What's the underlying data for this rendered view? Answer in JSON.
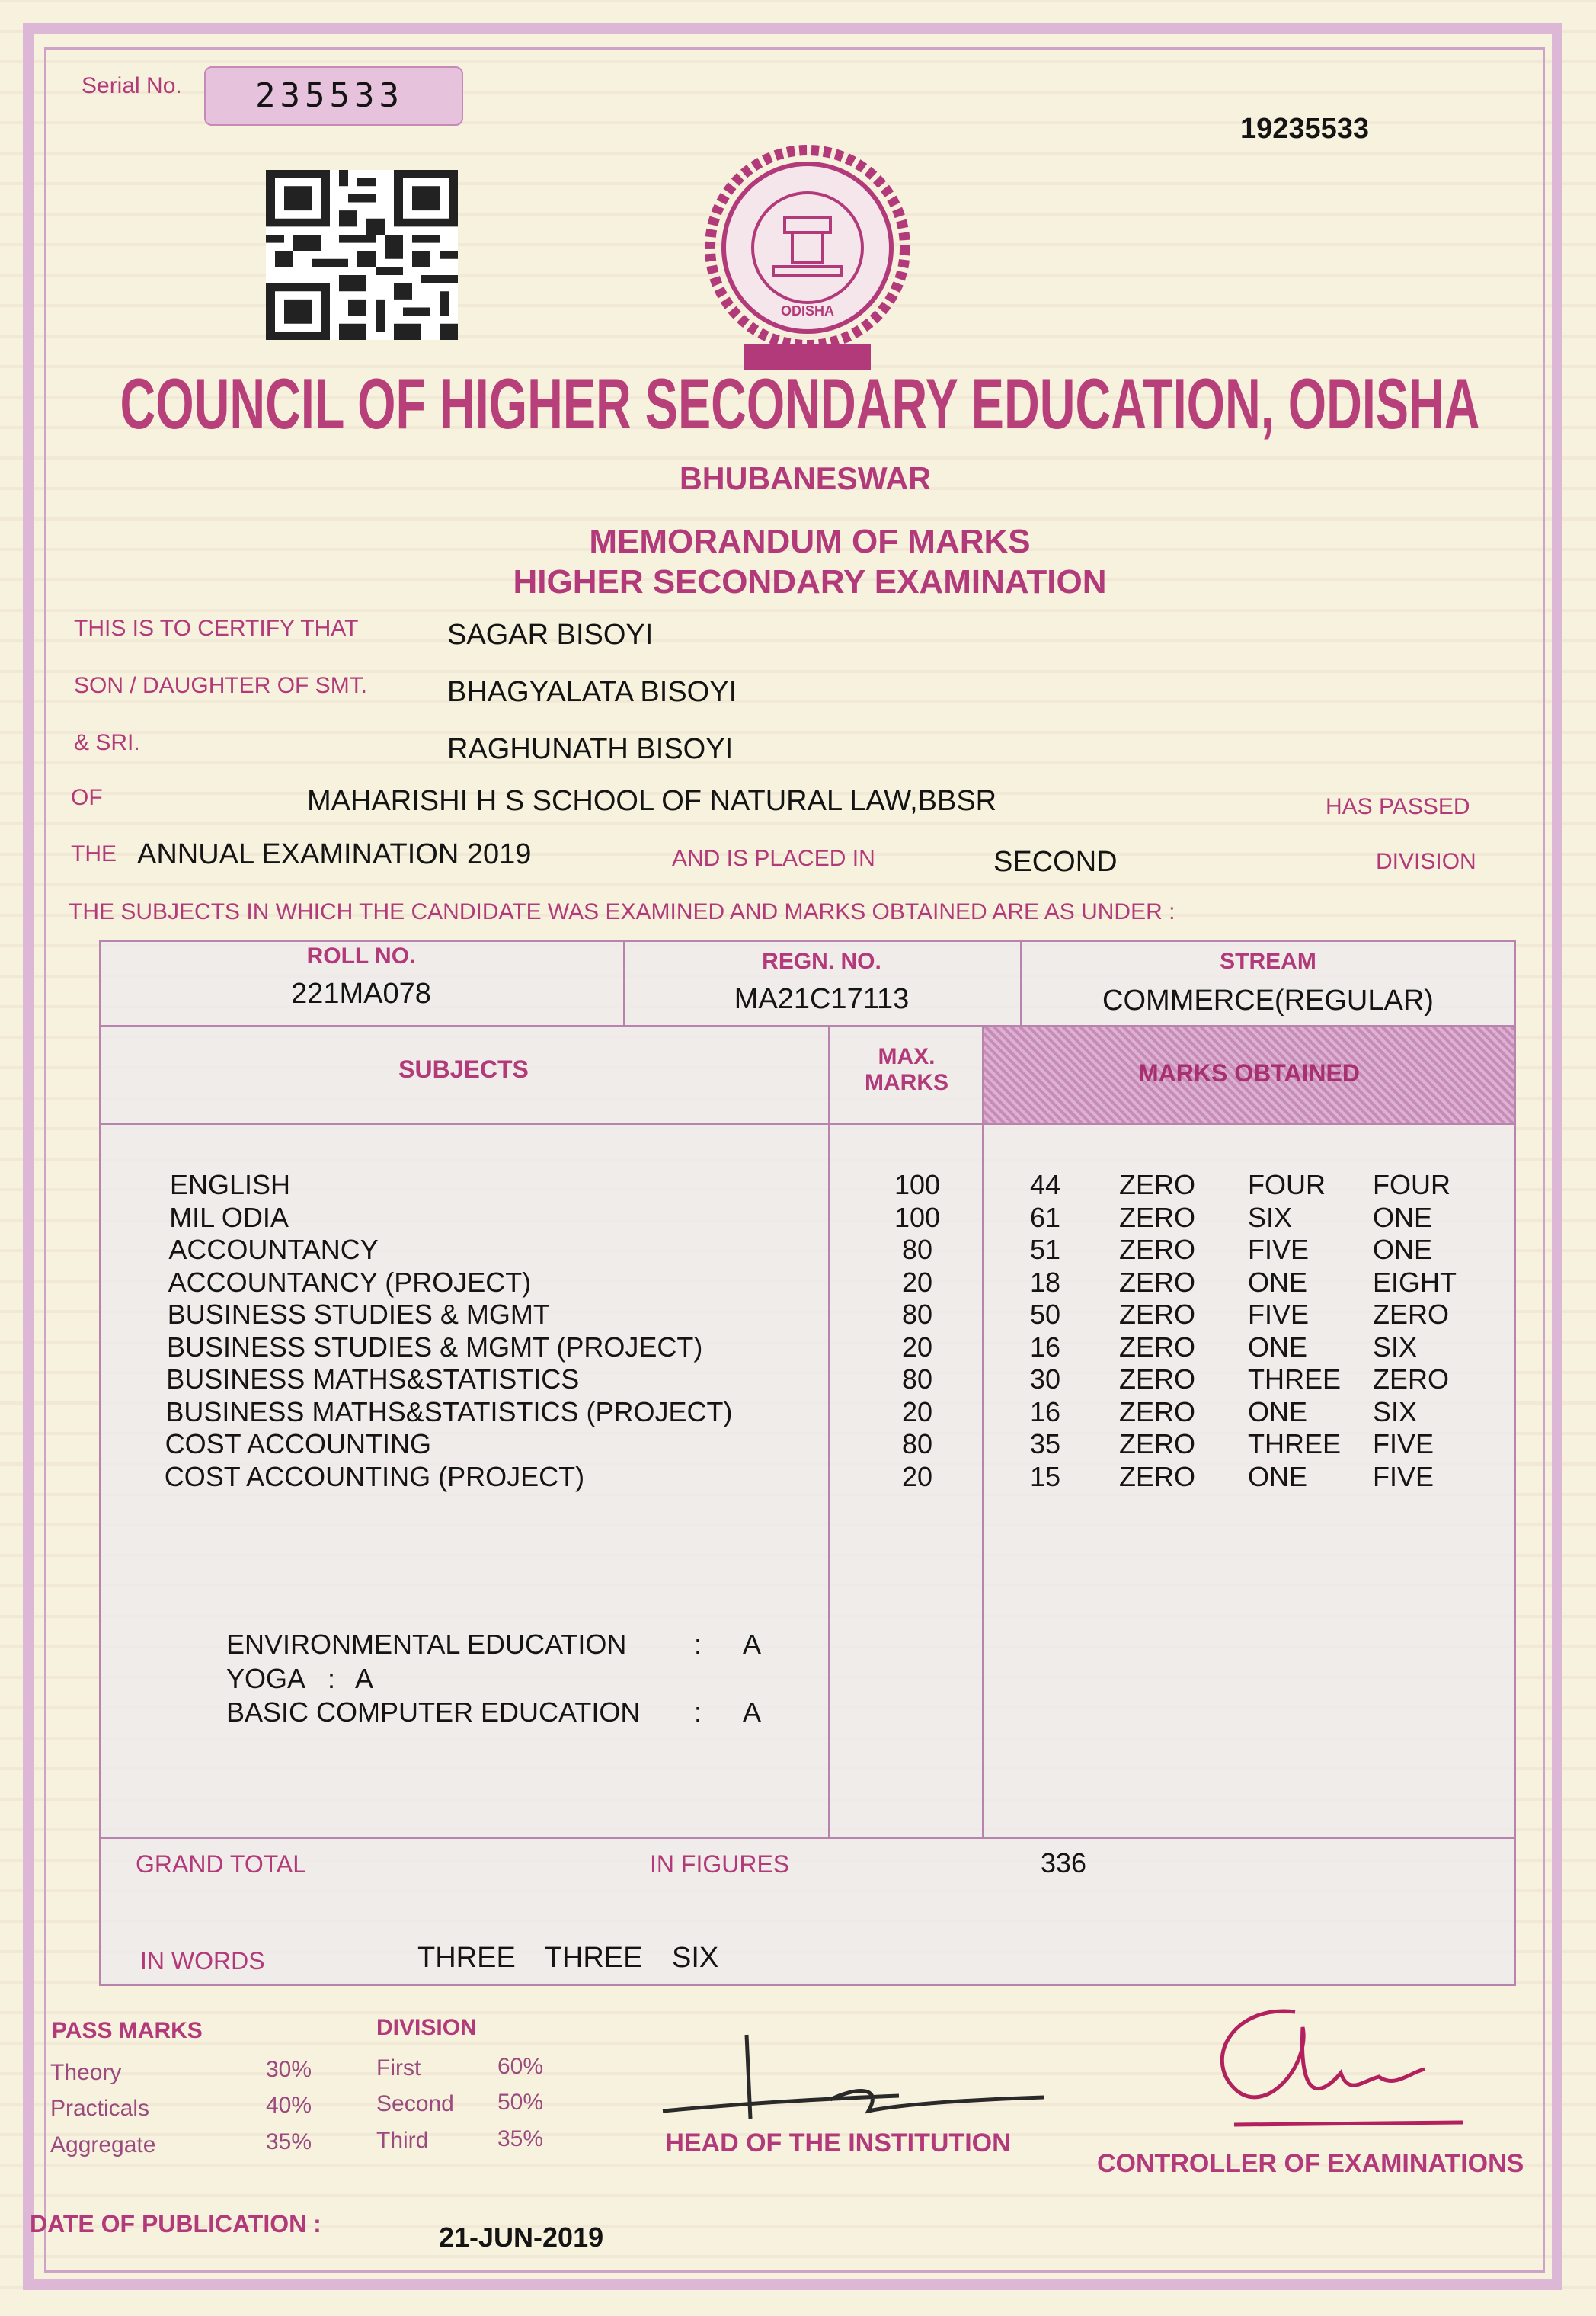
{
  "serial": {
    "label": "Serial No.",
    "value": "235533"
  },
  "certificate_no": "19235533",
  "header": {
    "logo_text": "ODISHA",
    "title": "COUNCIL OF HIGHER SECONDARY EDUCATION, ODISHA",
    "city": "BHUBANESWAR",
    "document_title": "MEMORANDUM OF MARKS",
    "exam_title": "HIGHER SECONDARY EXAMINATION"
  },
  "certify": [
    {
      "label": "THIS IS TO CERTIFY THAT",
      "value": "SAGAR BISOYI"
    },
    {
      "label": "SON / DAUGHTER OF SMT.",
      "value": "BHAGYALATA BISOYI"
    },
    {
      "label": "& SRI.",
      "value": "RAGHUNATH BISOYI"
    }
  ],
  "school_line": {
    "label": "OF",
    "value": "MAHARISHI H S SCHOOL OF NATURAL LAW,BBSR",
    "suffix": "HAS PASSED"
  },
  "exam_line": {
    "label": "THE",
    "exam": "ANNUAL EXAMINATION 2019",
    "placed_label": "AND IS PLACED IN",
    "division": "SECOND",
    "suffix": "DIVISION"
  },
  "subjects_intro": "THE SUBJECTS IN WHICH THE CANDIDATE WAS EXAMINED AND MARKS OBTAINED ARE AS UNDER :",
  "table": {
    "ids": [
      {
        "label": "ROLL NO.",
        "value": "221MA078"
      },
      {
        "label": "REGN. NO.",
        "value": "MA21C17113"
      },
      {
        "label": "STREAM",
        "value": "COMMERCE(REGULAR)"
      }
    ],
    "columns": [
      "SUBJECTS",
      "MAX. MARKS",
      "MARKS OBTAINED"
    ],
    "rows": [
      {
        "subject": "ENGLISH",
        "max_marks": 100,
        "marks": 44,
        "in_words": [
          "ZERO",
          "FOUR",
          "FOUR"
        ]
      },
      {
        "subject": "MIL ODIA",
        "max_marks": 100,
        "marks": 61,
        "in_words": [
          "ZERO",
          "SIX",
          "ONE"
        ]
      },
      {
        "subject": "ACCOUNTANCY",
        "max_marks": 80,
        "marks": 51,
        "in_words": [
          "ZERO",
          "FIVE",
          "ONE"
        ]
      },
      {
        "subject": "ACCOUNTANCY (PROJECT)",
        "max_marks": 20,
        "marks": 18,
        "in_words": [
          "ZERO",
          "ONE",
          "EIGHT"
        ]
      },
      {
        "subject": "BUSINESS STUDIES & MGMT",
        "max_marks": 80,
        "marks": 50,
        "in_words": [
          "ZERO",
          "FIVE",
          "ZERO"
        ]
      },
      {
        "subject": "BUSINESS STUDIES & MGMT (PROJECT)",
        "max_marks": 20,
        "marks": 16,
        "in_words": [
          "ZERO",
          "ONE",
          "SIX"
        ]
      },
      {
        "subject": "BUSINESS MATHS&STATISTICS",
        "max_marks": 80,
        "marks": 30,
        "in_words": [
          "ZERO",
          "THREE",
          "ZERO"
        ]
      },
      {
        "subject": "BUSINESS MATHS&STATISTICS (PROJECT)",
        "max_marks": 20,
        "marks": 16,
        "in_words": [
          "ZERO",
          "ONE",
          "SIX"
        ]
      },
      {
        "subject": "COST ACCOUNTING",
        "max_marks": 80,
        "marks": 35,
        "in_words": [
          "ZERO",
          "THREE",
          "FIVE"
        ]
      },
      {
        "subject": "COST ACCOUNTING (PROJECT)",
        "max_marks": 20,
        "marks": 15,
        "in_words": [
          "ZERO",
          "ONE",
          "FIVE"
        ]
      }
    ],
    "other_subjects": [
      {
        "subject": "ENVIRONMENTAL EDUCATION",
        "separator": ":",
        "grade": "A"
      },
      {
        "subject": "YOGA",
        "separator": ":",
        "grade": "A"
      },
      {
        "subject": "BASIC COMPUTER EDUCATION",
        "separator": ":",
        "grade": "A"
      }
    ]
  },
  "grand_total": {
    "label": "GRAND TOTAL",
    "figures_label": "IN FIGURES",
    "figures": 336,
    "words_label": "IN WORDS",
    "words": "THREE THREE SIX"
  },
  "pass_marks": {
    "title": "PASS MARKS",
    "rows": [
      [
        "Theory",
        "30%"
      ],
      [
        "Practicals",
        "40%"
      ],
      [
        "Aggregate",
        "35%"
      ]
    ]
  },
  "division_table": {
    "title": "DIVISION",
    "rows": [
      [
        "First",
        "60%"
      ],
      [
        "Second",
        "50%"
      ],
      [
        "Third",
        "35%"
      ]
    ]
  },
  "signatures": [
    "HEAD OF THE INSTITUTION",
    "CONTROLLER OF EXAMINATIONS"
  ],
  "publication": {
    "label": "DATE OF PUBLICATION :",
    "date": "21-JUN-2019"
  }
}
